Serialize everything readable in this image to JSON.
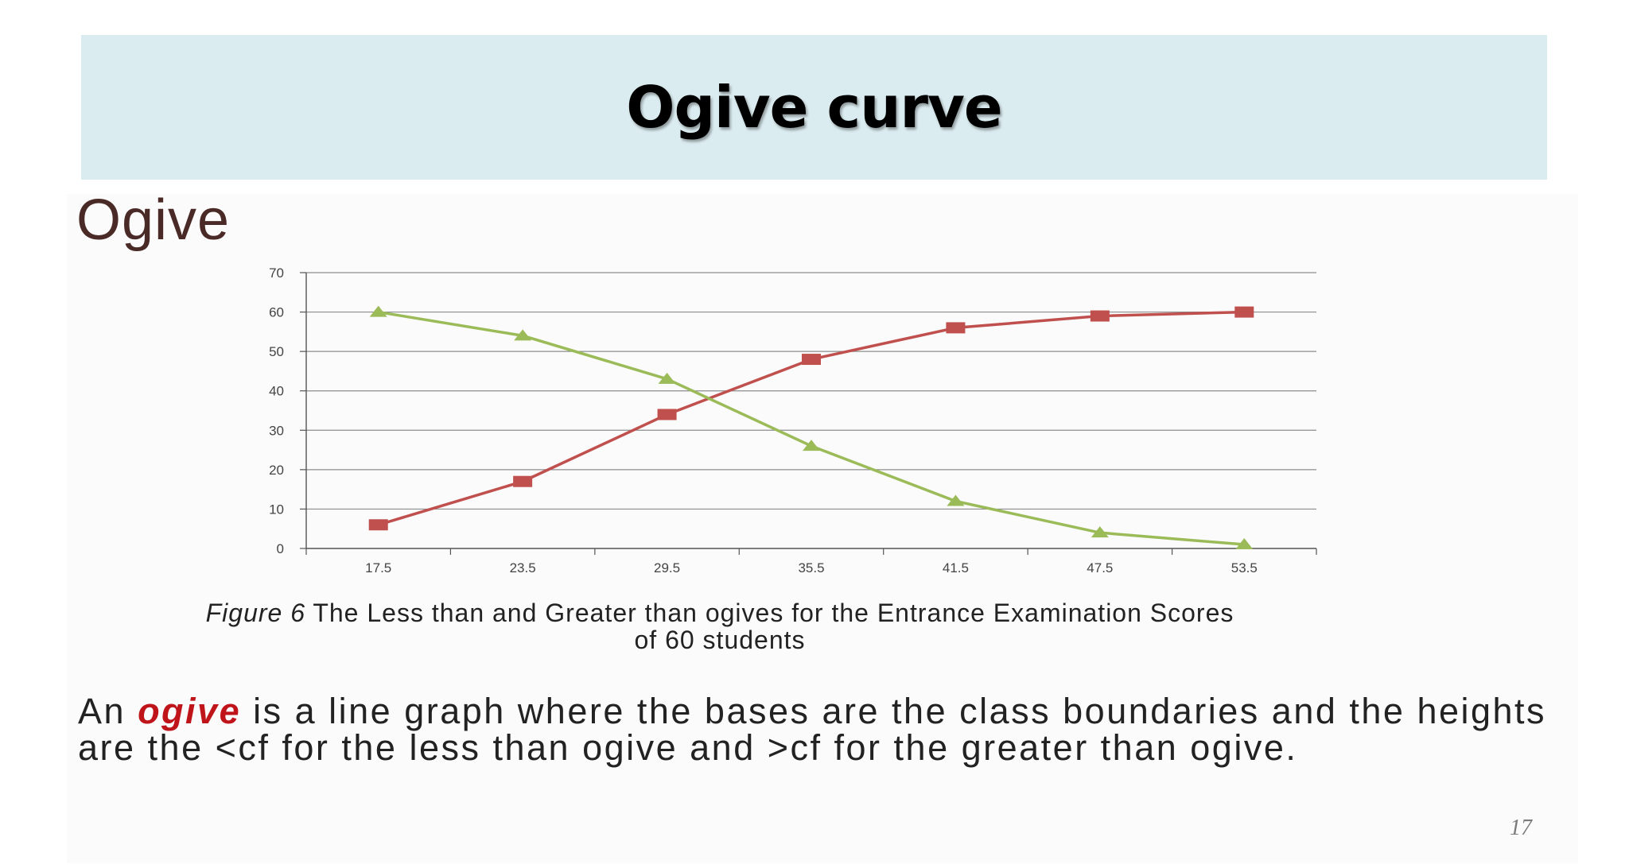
{
  "slide": {
    "title": "Ogive curve",
    "heading": "Ogive",
    "page_number": "17"
  },
  "caption": {
    "figure_label": "Figure 6",
    "text": "The Less than and Greater than ogives for the Entrance Examination Scores of 60 students"
  },
  "definition": {
    "prefix": "An",
    "keyword": "ogive",
    "rest": "is a line graph where the bases are the class boundaries and the heights are the <cf for the less than ogive and >cf for the greater than ogive."
  },
  "colors": {
    "title_band": "#dbecf0",
    "less_than": "#c0504d",
    "greater_than": "#9bbb59",
    "keyword": "#c0141b",
    "heading": "#4a2a26"
  },
  "chart_data": {
    "type": "line",
    "title": "",
    "xlabel": "",
    "ylabel": "",
    "categories": [
      "17.5",
      "23.5",
      "29.5",
      "35.5",
      "41.5",
      "47.5",
      "53.5"
    ],
    "ylim": [
      0,
      70
    ],
    "yticks": [
      0,
      10,
      20,
      30,
      40,
      50,
      60,
      70
    ],
    "grid": true,
    "legend": "none",
    "series": [
      {
        "values": [
          6,
          17,
          34,
          48,
          56,
          59,
          60
        ],
        "color": "#c0504d",
        "marker": "square"
      },
      {
        "values": [
          60,
          54,
          43,
          26,
          12,
          4,
          1
        ],
        "color": "#9bbb59",
        "marker": "triangle"
      }
    ]
  }
}
